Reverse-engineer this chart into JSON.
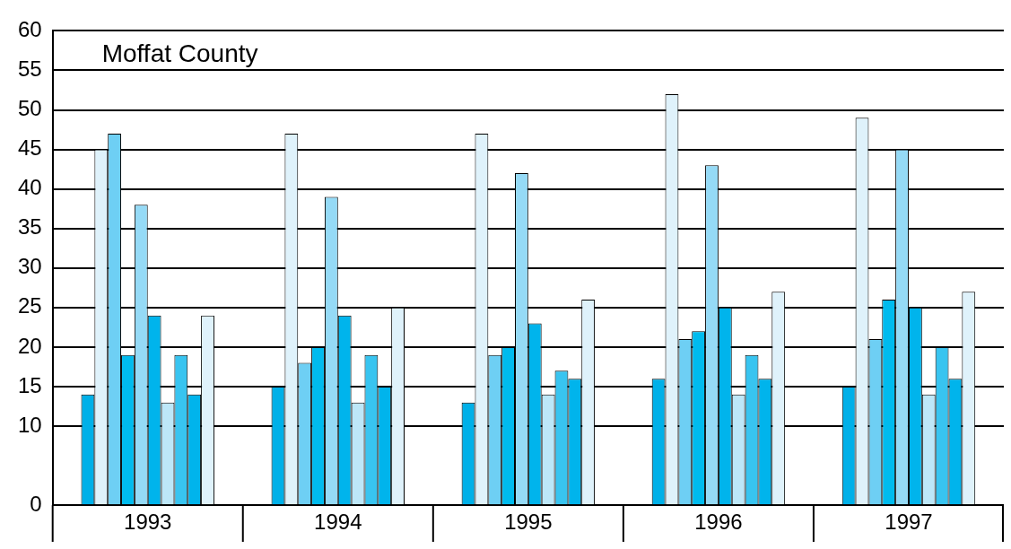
{
  "chart_data": {
    "type": "bar",
    "title": "Moffat County",
    "categories": [
      "1993",
      "1994",
      "1995",
      "1996",
      "1997"
    ],
    "series": [
      {
        "color": "#00b0e8",
        "values": [
          14,
          15,
          13,
          16,
          15
        ]
      },
      {
        "color": "#dff2fb",
        "values": [
          45,
          47,
          47,
          52,
          49
        ]
      },
      {
        "color": "#6ecff4",
        "values": [
          47,
          18,
          19,
          21,
          21
        ]
      },
      {
        "color": "#00bbee",
        "values": [
          19,
          20,
          20,
          22,
          26
        ]
      },
      {
        "color": "#95daf6",
        "values": [
          38,
          39,
          42,
          43,
          45
        ]
      },
      {
        "color": "#00b4ec",
        "values": [
          24,
          24,
          23,
          25,
          25
        ]
      },
      {
        "color": "#bde7f8",
        "values": [
          13,
          13,
          14,
          14,
          14
        ]
      },
      {
        "color": "#38c4f0",
        "values": [
          19,
          19,
          17,
          19,
          20
        ]
      },
      {
        "color": "#00b4ec",
        "values": [
          14,
          15,
          16,
          16,
          16
        ]
      },
      {
        "color": "#dff2fb",
        "values": [
          24,
          25,
          26,
          27,
          27
        ]
      }
    ],
    "ylim": [
      0,
      60
    ],
    "yticks": [
      0,
      10,
      15,
      20,
      25,
      30,
      35,
      40,
      45,
      50,
      55,
      60
    ],
    "grid": "y",
    "legend": false
  }
}
